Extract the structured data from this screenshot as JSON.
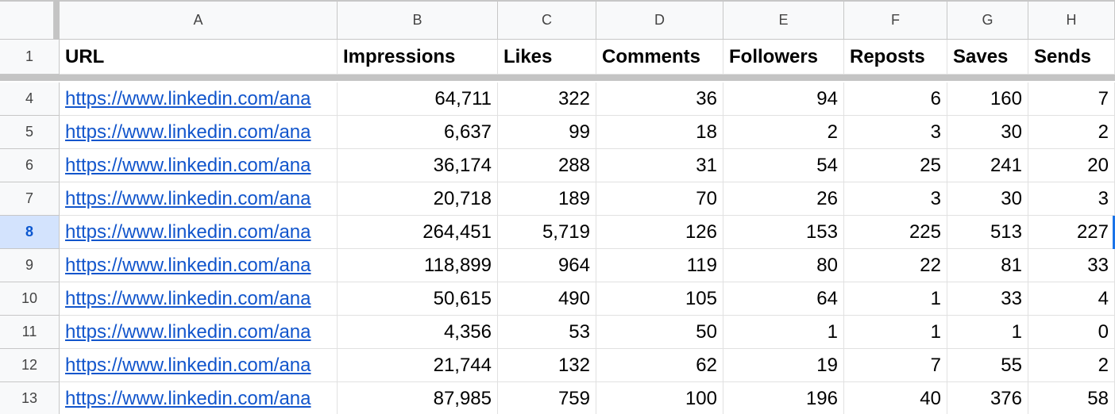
{
  "sheet": {
    "column_letters": [
      "A",
      "B",
      "C",
      "D",
      "E",
      "F",
      "G",
      "H"
    ],
    "header_row": {
      "number": "1",
      "cells": [
        "URL",
        "Impressions",
        "Likes",
        "Comments",
        "Followers",
        "Reposts",
        "Saves",
        "Sends"
      ]
    },
    "selected_row": "8",
    "rows": [
      {
        "number": "4",
        "cells": [
          "https://www.linkedin.com/ana",
          "64,711",
          "322",
          "36",
          "94",
          "6",
          "160",
          "7"
        ]
      },
      {
        "number": "5",
        "cells": [
          "https://www.linkedin.com/ana",
          "6,637",
          "99",
          "18",
          "2",
          "3",
          "30",
          "2"
        ]
      },
      {
        "number": "6",
        "cells": [
          "https://www.linkedin.com/ana",
          "36,174",
          "288",
          "31",
          "54",
          "25",
          "241",
          "20"
        ]
      },
      {
        "number": "7",
        "cells": [
          "https://www.linkedin.com/ana",
          "20,718",
          "189",
          "70",
          "26",
          "3",
          "30",
          "3"
        ]
      },
      {
        "number": "8",
        "cells": [
          "https://www.linkedin.com/ana",
          "264,451",
          "5,719",
          "126",
          "153",
          "225",
          "513",
          "227"
        ]
      },
      {
        "number": "9",
        "cells": [
          "https://www.linkedin.com/ana",
          "118,899",
          "964",
          "119",
          "80",
          "22",
          "81",
          "33"
        ]
      },
      {
        "number": "10",
        "cells": [
          "https://www.linkedin.com/ana",
          "50,615",
          "490",
          "105",
          "64",
          "1",
          "33",
          "4"
        ]
      },
      {
        "number": "11",
        "cells": [
          "https://www.linkedin.com/ana",
          "4,356",
          "53",
          "50",
          "1",
          "1",
          "1",
          "0"
        ]
      },
      {
        "number": "12",
        "cells": [
          "https://www.linkedin.com/ana",
          "21,744",
          "132",
          "62",
          "19",
          "7",
          "55",
          "2"
        ]
      },
      {
        "number": "13",
        "cells": [
          "https://www.linkedin.com/ana",
          "87,985",
          "759",
          "100",
          "196",
          "40",
          "376",
          "58"
        ]
      }
    ]
  }
}
